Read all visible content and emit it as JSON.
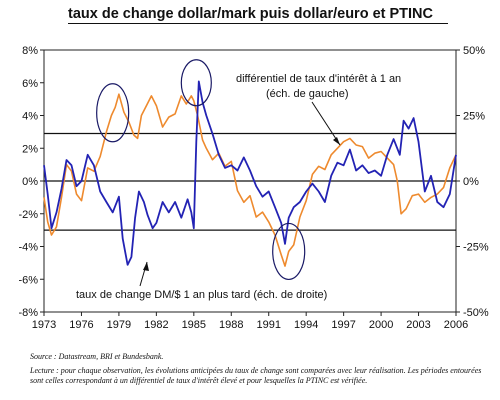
{
  "chart_data": {
    "type": "line",
    "title": "taux de change dollar/mark puis dollar/euro et PTINC",
    "x_range": [
      1973,
      2006
    ],
    "x_ticks": [
      "1973",
      "1976",
      "1979",
      "1982",
      "1985",
      "1988",
      "1991",
      "1994",
      "1997",
      "2000",
      "2003",
      "2006"
    ],
    "y_left": {
      "range": [
        -8,
        8
      ],
      "ticks": [
        "8%",
        "6%",
        "4%",
        "2%",
        "0%",
        "-2%",
        "-4%",
        "-6%",
        "-8%"
      ]
    },
    "y_right": {
      "range": [
        -50,
        50
      ],
      "ticks": [
        "50%",
        "25%",
        "0%",
        "-25%",
        "-50%"
      ]
    },
    "reference_lines_left_axis": [
      2.9,
      0,
      -3.0
    ],
    "grid": false,
    "series": [
      {
        "name": "différentiel de taux d'intérêt à 1 an (éch. de gauche)",
        "axis": "left",
        "color": "#EE8A2E",
        "x": [
          1973.0,
          1973.3,
          1973.6,
          1974.0,
          1974.4,
          1974.8,
          1975.2,
          1975.6,
          1976.0,
          1976.5,
          1977.0,
          1977.5,
          1978.0,
          1978.4,
          1978.7,
          1979.0,
          1979.4,
          1979.8,
          1980.2,
          1980.5,
          1980.8,
          1981.2,
          1981.6,
          1982.0,
          1982.5,
          1983.0,
          1983.5,
          1984.0,
          1984.4,
          1984.8,
          1985.0,
          1985.3,
          1985.7,
          1986.0,
          1986.5,
          1987.0,
          1987.5,
          1988.0,
          1988.5,
          1989.0,
          1989.5,
          1990.0,
          1990.5,
          1991.0,
          1991.5,
          1992.0,
          1992.3,
          1992.6,
          1993.0,
          1993.5,
          1994.0,
          1994.5,
          1995.0,
          1995.5,
          1996.0,
          1996.5,
          1997.0,
          1997.5,
          1998.0,
          1998.5,
          1999.0,
          1999.5,
          2000.0,
          2000.5,
          2001.0,
          2001.3,
          2001.6,
          2002.0,
          2002.5,
          2003.0,
          2003.5,
          2004.0,
          2004.5,
          2005.0,
          2005.5,
          2006.0
        ],
        "values": [
          -1.0,
          -2.5,
          -3.3,
          -2.8,
          -1.0,
          1.0,
          0.6,
          -0.8,
          -1.2,
          0.8,
          0.6,
          1.5,
          3.0,
          4.0,
          4.5,
          5.3,
          4.2,
          3.6,
          2.8,
          2.6,
          4.0,
          4.6,
          5.2,
          4.6,
          3.3,
          3.9,
          4.1,
          5.2,
          4.7,
          5.2,
          4.9,
          4.0,
          2.5,
          2.0,
          1.3,
          1.7,
          0.9,
          1.2,
          -0.6,
          -1.3,
          -0.9,
          -2.2,
          -1.9,
          -2.5,
          -3.3,
          -4.5,
          -5.2,
          -4.3,
          -3.9,
          -2.2,
          -1.2,
          0.4,
          0.9,
          0.7,
          1.6,
          2.0,
          2.4,
          2.6,
          2.2,
          2.1,
          1.4,
          1.7,
          1.8,
          1.4,
          1.0,
          0.0,
          -2.0,
          -1.7,
          -0.9,
          -0.8,
          -1.3,
          -1.0,
          -0.8,
          -0.4,
          0.8,
          1.6
        ]
      },
      {
        "name": "taux de change DM/$ 1 an plus tard (éch. de droite)",
        "axis": "right",
        "color": "#2323B4",
        "x": [
          1973.0,
          1973.3,
          1973.6,
          1974.0,
          1974.4,
          1974.8,
          1975.2,
          1975.6,
          1976.0,
          1976.5,
          1977.0,
          1977.5,
          1978.0,
          1978.5,
          1979.0,
          1979.3,
          1979.7,
          1980.0,
          1980.3,
          1980.6,
          1981.0,
          1981.3,
          1981.7,
          1982.0,
          1982.5,
          1983.0,
          1983.5,
          1984.0,
          1984.5,
          1984.8,
          1985.0,
          1985.2,
          1985.4,
          1985.7,
          1986.0,
          1986.5,
          1987.0,
          1987.5,
          1988.0,
          1988.5,
          1989.0,
          1989.5,
          1990.0,
          1990.5,
          1991.0,
          1991.5,
          1992.0,
          1992.3,
          1992.6,
          1993.0,
          1993.5,
          1994.0,
          1994.5,
          1995.0,
          1995.5,
          1996.0,
          1996.5,
          1997.0,
          1997.5,
          1998.0,
          1998.5,
          1999.0,
          1999.5,
          2000.0,
          2000.5,
          2001.0,
          2001.5,
          2001.8,
          2002.2,
          2002.6,
          2003.0,
          2003.5,
          2004.0,
          2004.5,
          2005.0,
          2005.5,
          2006.0
        ],
        "values": [
          6.0,
          -5.0,
          -18.0,
          -12.0,
          -3.0,
          8.0,
          6.0,
          -2.0,
          0.0,
          10.0,
          6.0,
          -4.0,
          -8.0,
          -12.0,
          -6.0,
          -22.0,
          -32.0,
          -29.0,
          -14.0,
          -4.0,
          -8.0,
          -13.0,
          -18.0,
          -16.0,
          -8.0,
          -12.0,
          -8.0,
          -14.0,
          -7.0,
          -12.0,
          -18.0,
          15.0,
          38.0,
          30.0,
          25.0,
          18.0,
          10.0,
          5.0,
          6.0,
          4.0,
          9.0,
          4.0,
          -2.0,
          -6.0,
          -4.0,
          -10.0,
          -16.0,
          -24.0,
          -14.0,
          -10.0,
          -8.0,
          -4.0,
          -1.0,
          -4.0,
          -8.0,
          2.0,
          7.0,
          6.0,
          12.0,
          4.0,
          6.0,
          3.0,
          4.0,
          2.0,
          10.0,
          16.0,
          10.0,
          23.0,
          20.0,
          24.0,
          15.0,
          -4.0,
          2.0,
          -8.0,
          -10.0,
          -5.0,
          10.0
        ]
      }
    ],
    "annotations": [
      {
        "text": "différentiel de taux d'intérêt à 1 an",
        "points_to": "orange series"
      },
      {
        "text": "(éch. de gauche)",
        "points_to": "orange series"
      },
      {
        "text": "taux de change DM/$ 1 an plus tard (éch. de droite)",
        "points_to": "blue series"
      }
    ],
    "highlighted_periods": [
      1978.5,
      1985.2,
      1992.6
    ]
  },
  "notes": {
    "source": "Source : Datastream, BRI et Bundesbank.",
    "reading": "Lecture : pour chaque observation, les évolutions anticipées du taux de change sont comparées avec leur réalisation. Les périodes entourées sont celles correspondant à un différentiel de taux d'intérêt élevé et pour lesquelles la PTINC est vérifiée."
  }
}
